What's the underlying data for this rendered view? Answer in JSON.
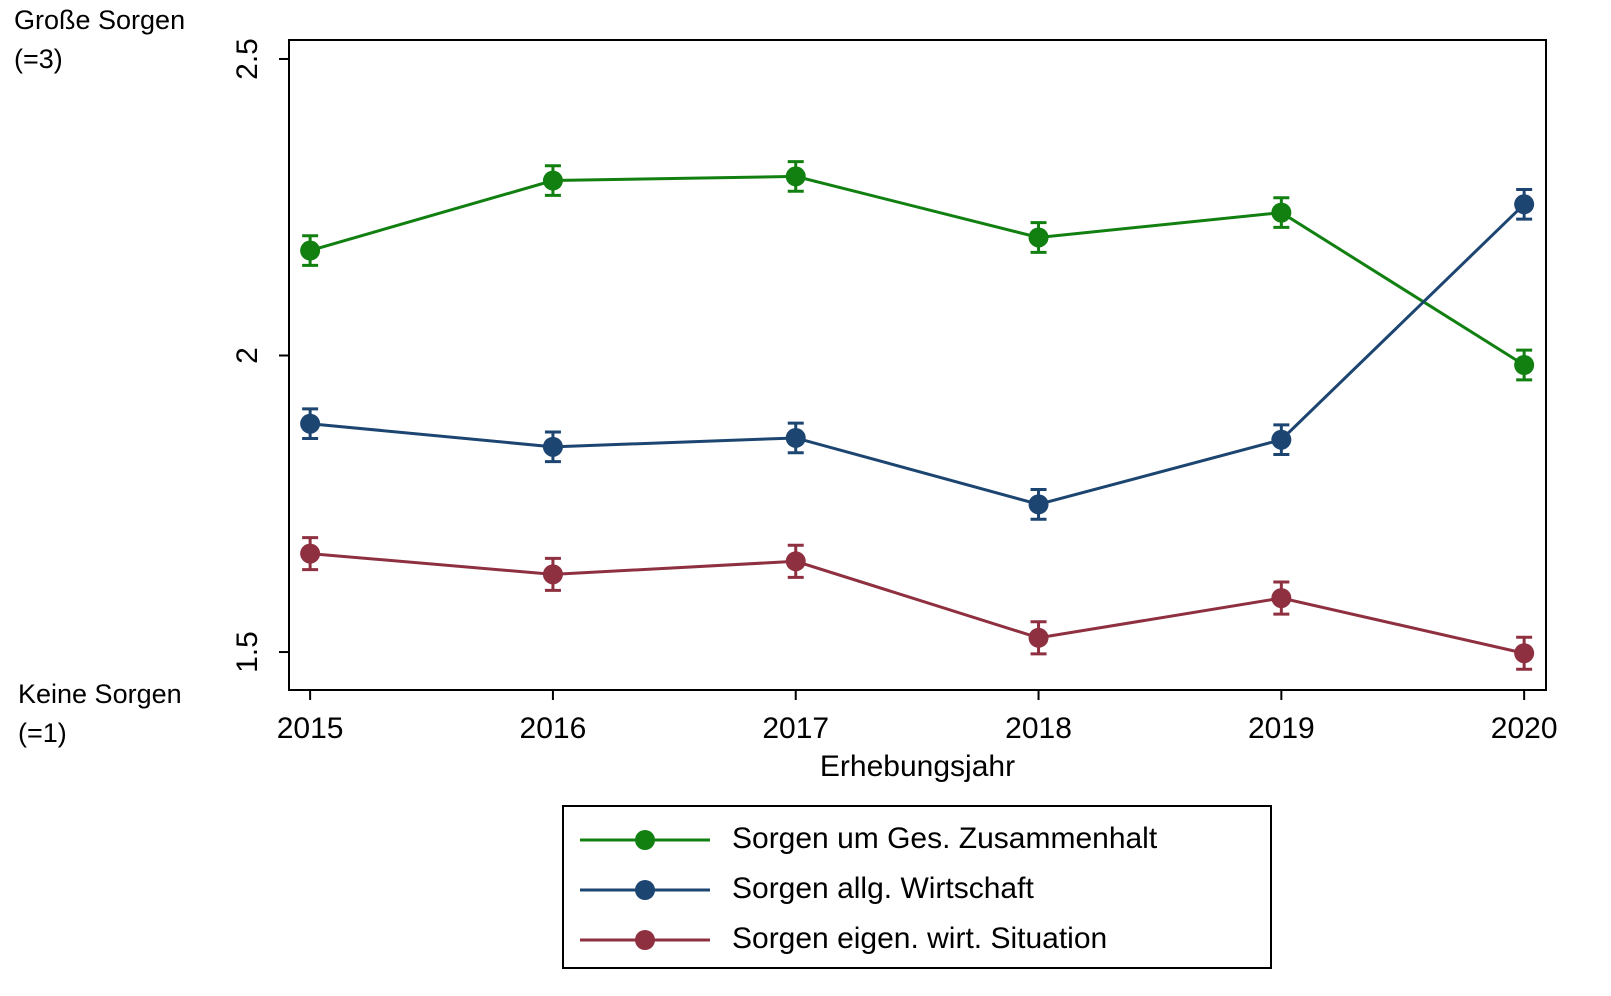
{
  "chart_data": {
    "type": "line",
    "x": [
      2015,
      2016,
      2017,
      2018,
      2019,
      2020
    ],
    "xlabel": "Erhebungsjahr",
    "xlim": [
      2014.913,
      2020.09
    ],
    "xticks": [
      2015,
      2016,
      2017,
      2018,
      2019,
      2020
    ],
    "ylim": [
      1.436,
      2.532
    ],
    "yticks": [
      1.5,
      2,
      2.5
    ],
    "annotations": [
      [
        "Große Sorgen",
        "(=3)"
      ],
      [
        "Keine Sorgen",
        "(=1)"
      ]
    ],
    "legend": "bottom",
    "series": [
      {
        "name": "Sorgen um Ges. Zusammenhalt",
        "color": "#118011",
        "values": [
          2.177,
          2.295,
          2.302,
          2.199,
          2.241,
          1.984
        ],
        "errors": [
          0.025,
          0.025,
          0.025,
          0.025,
          0.025,
          0.025
        ]
      },
      {
        "name": "Sorgen allg. Wirtschaft",
        "color": "#1d4571",
        "values": [
          1.885,
          1.846,
          1.861,
          1.749,
          1.858,
          2.255
        ],
        "errors": [
          0.025,
          0.025,
          0.025,
          0.025,
          0.025,
          0.025
        ]
      },
      {
        "name": "Sorgen eigen. wirt. Situation",
        "color": "#8f3040",
        "values": [
          1.666,
          1.631,
          1.653,
          1.524,
          1.591,
          1.498
        ],
        "errors": [
          0.027,
          0.027,
          0.027,
          0.027,
          0.027,
          0.027
        ]
      }
    ]
  }
}
